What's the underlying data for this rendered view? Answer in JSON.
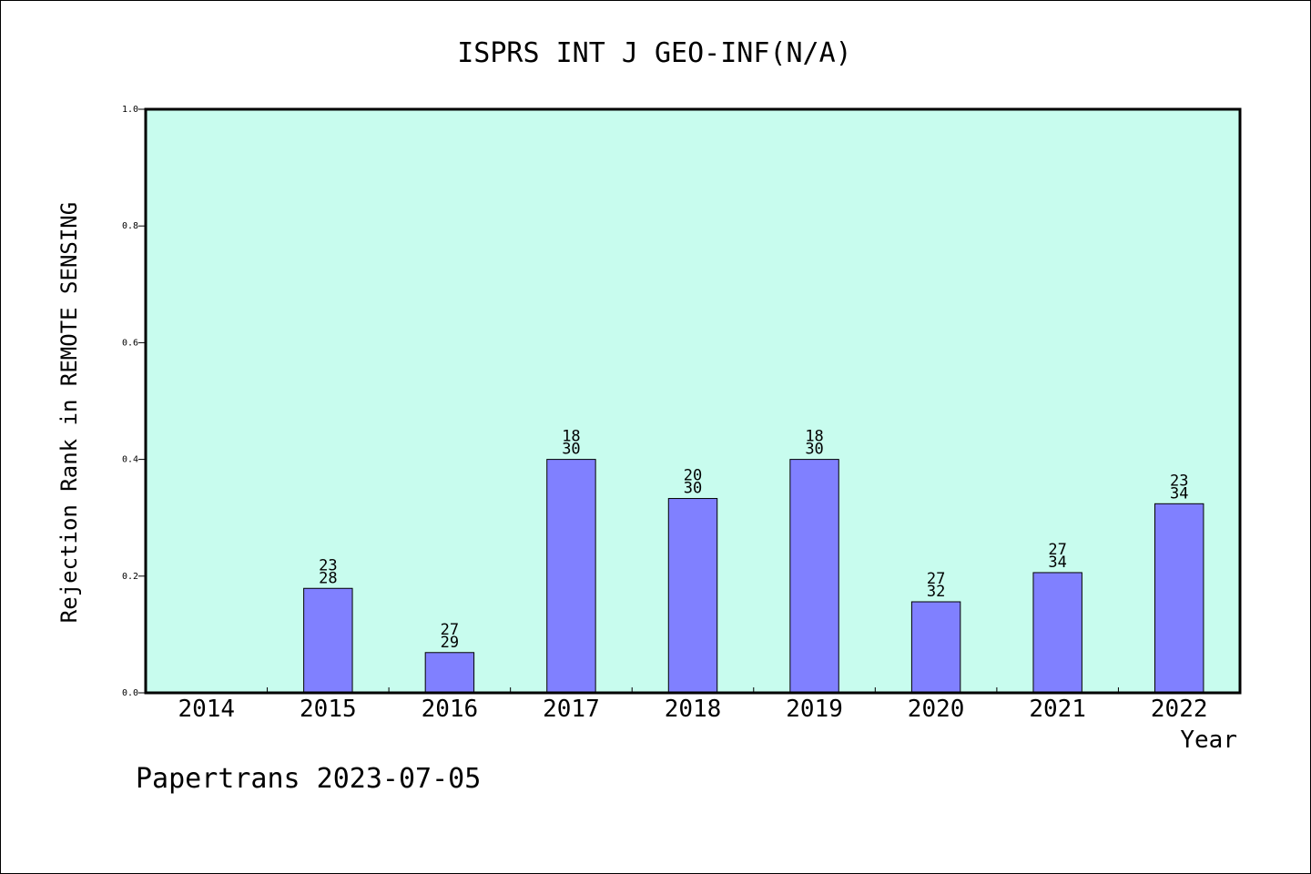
{
  "chart_data": {
    "type": "bar",
    "title": "ISPRS INT J GEO-INF(N/A)",
    "xlabel": "Year",
    "ylabel": "Rejection Rank in REMOTE SENSING",
    "categories": [
      "2014",
      "2015",
      "2016",
      "2017",
      "2018",
      "2019",
      "2020",
      "2021",
      "2022"
    ],
    "values": [
      0,
      0.179,
      0.069,
      0.4,
      0.333,
      0.4,
      0.156,
      0.206,
      0.324
    ],
    "label_top": [
      "",
      "23",
      "27",
      "18",
      "20",
      "18",
      "27",
      "27",
      "23"
    ],
    "label_bottom": [
      "",
      "28",
      "29",
      "30",
      "30",
      "30",
      "32",
      "34",
      "34"
    ],
    "ylim": [
      0,
      1.0
    ],
    "yticks": [
      "0.0",
      "0.2",
      "0.4",
      "0.6",
      "0.8",
      "1.0"
    ],
    "grid": false,
    "plot_background": "#c8fcee",
    "bar_color": "#8080ff"
  },
  "footer": "Papertrans 2023-07-05"
}
